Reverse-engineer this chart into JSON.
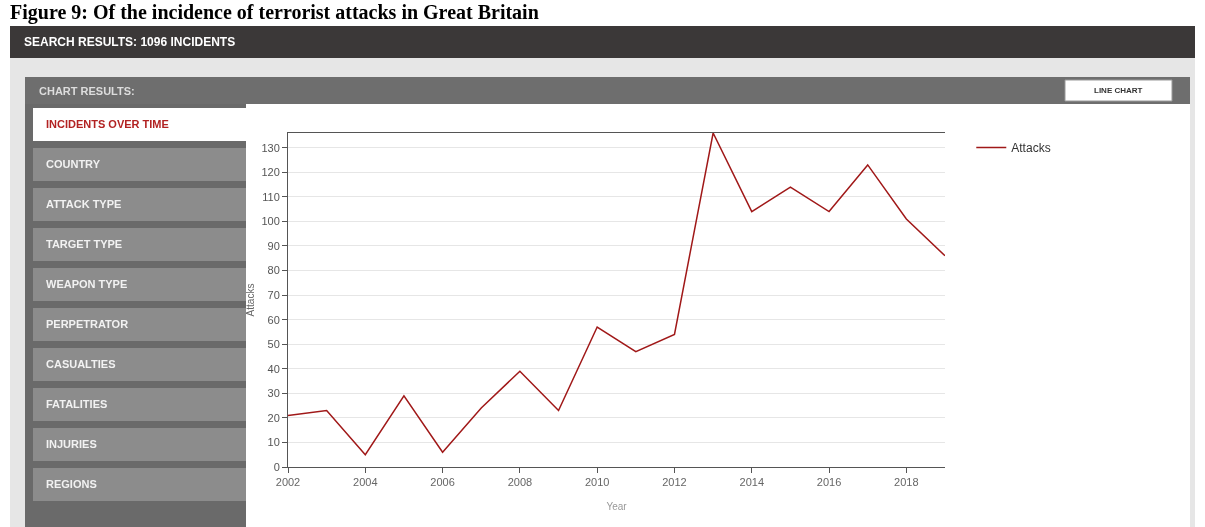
{
  "chart_data": {
    "type": "line",
    "title": "Figure 9: Of the incidence of terrorist attacks in Great Britain",
    "xlabel": "Year",
    "ylabel": "Attacks",
    "x": [
      2002,
      2003,
      2004,
      2005,
      2006,
      2007,
      2008,
      2009,
      2010,
      2011,
      2012,
      2013,
      2014,
      2015,
      2016,
      2017,
      2018,
      2019
    ],
    "series": [
      {
        "name": "Attacks",
        "color": "#a01818",
        "values": [
          21,
          23,
          5,
          29,
          6,
          24,
          39,
          23,
          57,
          47,
          54,
          136,
          104,
          114,
          104,
          123,
          101,
          86
        ]
      }
    ],
    "xlim": [
      2002,
      2019
    ],
    "xticks": [
      2002,
      2004,
      2006,
      2008,
      2010,
      2012,
      2014,
      2016,
      2018
    ],
    "ylim": [
      0,
      136
    ],
    "yticks": [
      0,
      10,
      20,
      30,
      40,
      50,
      60,
      70,
      80,
      90,
      100,
      110,
      120,
      130
    ],
    "grid": "y",
    "legend": "top right",
    "marker": "none",
    "line_style": "solid",
    "annotations": [
      "SEARCH RESULTS: 1096 INCIDENTS",
      "CHART RESULTS:",
      "LINE CHART",
      "INCIDENTS OVER TIME",
      "COUNTRY",
      "ATTACK TYPE",
      "TARGET TYPE",
      "WEAPON TYPE",
      "PERPETRATOR",
      "CASUALTIES",
      "FATALITIES",
      "INJURIES",
      "REGIONS"
    ]
  }
}
